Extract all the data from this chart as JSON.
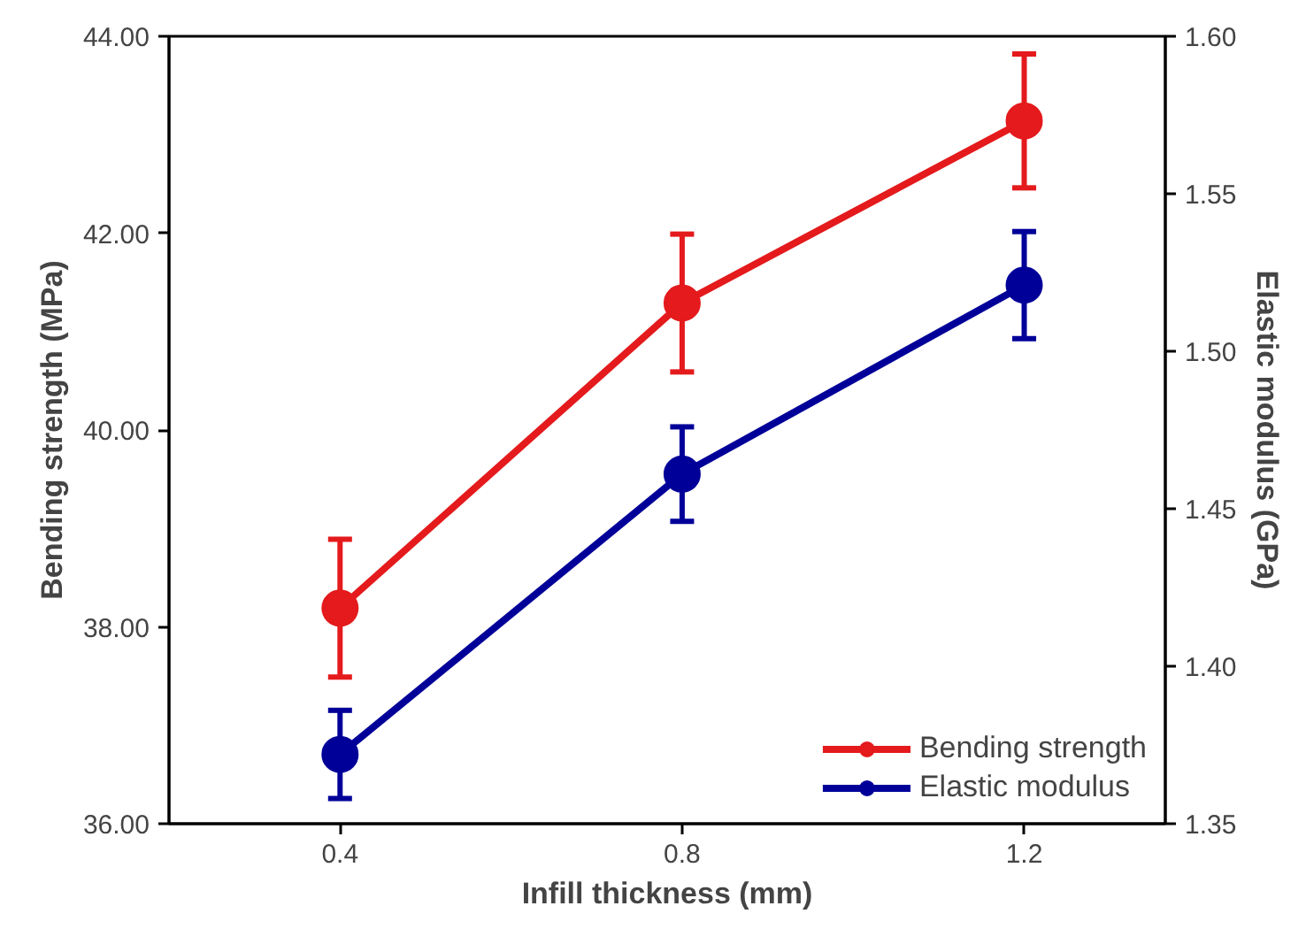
{
  "chart_data": {
    "type": "line",
    "xlabel": "Infill thickness (mm)",
    "ylabel": "Bending strength (MPa)",
    "y2label": "Elastic modulus (GPa)",
    "x": [
      0.4,
      0.8,
      1.2
    ],
    "series": [
      {
        "name": "Bending strength",
        "color": "#e41a1c",
        "values": [
          38.19,
          41.29,
          43.14
        ],
        "errors": [
          0.7,
          0.7,
          0.68
        ]
      },
      {
        "name": "Elastic modulus",
        "color": "#000099",
        "values": [
          1.372,
          1.461,
          1.521
        ],
        "errors": [
          0.014,
          0.015,
          0.017
        ],
        "axis": "y2"
      }
    ],
    "xlim": [
      0.2,
      1.365
    ],
    "xticks": [
      0.4,
      0.8,
      1.2
    ],
    "ylim": [
      36,
      44
    ],
    "yticks": [
      {
        "value": 36,
        "label": "36.00"
      },
      {
        "value": 38,
        "label": "38.00"
      },
      {
        "value": 40,
        "label": "40.00"
      },
      {
        "value": 42,
        "label": "42.00"
      },
      {
        "value": 44,
        "label": "44.00"
      }
    ],
    "y2lim": [
      1.35,
      1.6
    ],
    "y2ticks": [
      {
        "value": 1.35,
        "label": "1.35"
      },
      {
        "value": 1.4,
        "label": "1.40"
      },
      {
        "value": 1.45,
        "label": "1.45"
      },
      {
        "value": 1.5,
        "label": "1.50"
      },
      {
        "value": 1.55,
        "label": "1.55"
      },
      {
        "value": 1.6,
        "label": "1.60"
      }
    ],
    "grid": false,
    "legend": "bottom right",
    "marker": "circle",
    "line_style": "solid"
  }
}
